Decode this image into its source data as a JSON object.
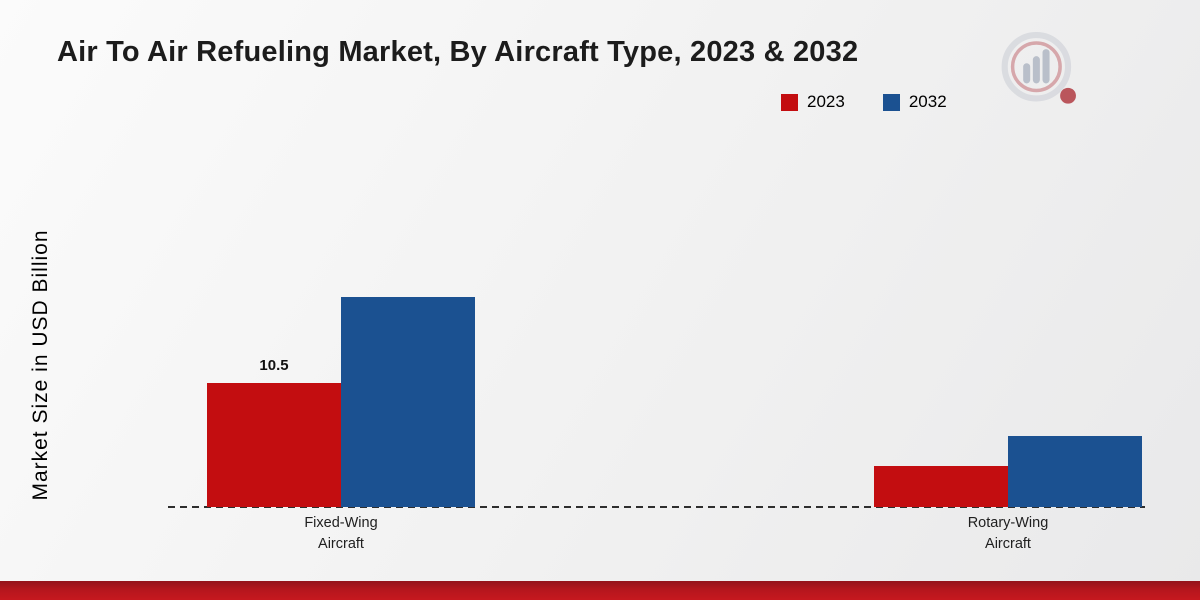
{
  "logo": {
    "name": "bar-chart-magnifier-logo"
  },
  "chart_data": {
    "type": "bar",
    "title": "Air To Air Refueling Market, By Aircraft Type, 2023 & 2032",
    "ylabel": "Market Size in USD Billion",
    "xlabel": "",
    "categories": [
      "Fixed-Wing Aircraft",
      "Rotary-Wing Aircraft"
    ],
    "series": [
      {
        "name": "2023",
        "color": "#c30d10",
        "values": [
          10.5,
          3.5
        ]
      },
      {
        "name": "2032",
        "color": "#1b5191",
        "values": [
          17.8,
          6.0
        ]
      }
    ],
    "value_labels": [
      [
        "10.5",
        null
      ],
      [
        null,
        null
      ]
    ],
    "ylim": [
      0,
      20
    ],
    "grid": false,
    "legend_position": "top-right",
    "baseline_style": "dashed"
  },
  "footer": {
    "accent_bar_colors": [
      "#93141b",
      "#c6181f"
    ]
  }
}
